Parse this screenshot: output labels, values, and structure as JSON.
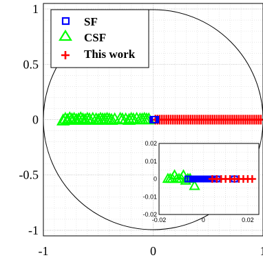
{
  "chart_data": {
    "type": "scatter",
    "title": "",
    "xlabel": "",
    "ylabel": "",
    "xlim": [
      -1,
      1
    ],
    "ylim": [
      -1.05,
      1.05
    ],
    "grid": true,
    "unit_circle": true,
    "legend_position": "top-left",
    "x_ticks": [
      -1,
      0,
      1
    ],
    "x_tick_labels": [
      "-1",
      "0",
      "1"
    ],
    "y_ticks": [
      -1,
      -0.5,
      0,
      0.5,
      1
    ],
    "y_tick_labels": [
      "-1",
      "-0.5",
      "0",
      "0.5",
      "1"
    ],
    "series": [
      {
        "name": "SF",
        "marker": "square",
        "color": "#0000ff",
        "x": [
          0.0,
          0.01,
          0.02
        ],
        "y": [
          0,
          0,
          0
        ]
      },
      {
        "name": "CSF",
        "marker": "triangle",
        "color": "#00ff00",
        "x": [
          -0.82,
          -0.8,
          -0.78,
          -0.76,
          -0.74,
          -0.72,
          -0.7,
          -0.68,
          -0.66,
          -0.64,
          -0.62,
          -0.6,
          -0.58,
          -0.55,
          -0.52,
          -0.5,
          -0.48,
          -0.46,
          -0.44,
          -0.42,
          -0.4,
          -0.38,
          -0.35,
          -0.3,
          -0.28,
          -0.25,
          -0.22,
          -0.2,
          -0.18,
          -0.15,
          -0.12,
          -0.1,
          -0.08,
          -0.06,
          -0.04
        ],
        "y": [
          -0.01,
          0.005,
          -0.005,
          0.01,
          0,
          0.005,
          -0.005,
          0,
          0.01,
          0,
          -0.005,
          0.005,
          0,
          0.005,
          0,
          -0.005,
          0.005,
          0,
          0,
          0.005,
          0,
          -0.005,
          0,
          0.005,
          0,
          0,
          -0.005,
          0.005,
          0,
          0.005,
          0,
          0,
          0.005,
          0,
          0
        ]
      },
      {
        "name": "This work",
        "marker": "plus",
        "color": "#ff0000",
        "x": [
          0.02,
          0.04,
          0.06,
          0.08,
          0.1,
          0.12,
          0.14,
          0.16,
          0.18,
          0.2,
          0.22,
          0.24,
          0.26,
          0.28,
          0.3,
          0.32,
          0.34,
          0.36,
          0.38,
          0.4,
          0.42,
          0.44,
          0.46,
          0.48,
          0.5,
          0.52,
          0.54,
          0.56,
          0.58,
          0.6,
          0.62,
          0.64,
          0.66,
          0.68,
          0.7,
          0.72,
          0.74,
          0.76,
          0.78,
          0.8,
          0.82,
          0.84,
          0.86,
          0.88,
          0.9,
          0.92,
          0.94,
          0.96,
          0.98
        ],
        "y": [
          0,
          0,
          0,
          0,
          0,
          0,
          0,
          0,
          0,
          0,
          0,
          0,
          0,
          0,
          0,
          0,
          0,
          0,
          0,
          0,
          0,
          0,
          0,
          0,
          0,
          0,
          0,
          0,
          0,
          0,
          0,
          0,
          0,
          0,
          0,
          0,
          0,
          0,
          0,
          0,
          0,
          0,
          0,
          0,
          0,
          0,
          0,
          0,
          0
        ]
      }
    ],
    "inset": {
      "xlim": [
        -0.02,
        0.025
      ],
      "ylim": [
        -0.02,
        0.02
      ],
      "x_ticks": [
        -0.02,
        0,
        0.02
      ],
      "x_tick_labels": [
        "-0.02",
        "0",
        "0.02"
      ],
      "y_ticks": [
        -0.02,
        -0.01,
        0,
        0.01,
        0.02
      ],
      "y_tick_labels": [
        "-0.02",
        "-0.01",
        "0",
        "0.01",
        "0.02"
      ],
      "series": [
        {
          "name": "SF",
          "marker": "square",
          "color": "#0000ff",
          "x": [
            -0.007,
            -0.006,
            -0.005,
            -0.004,
            -0.003,
            -0.002,
            -0.001,
            0.0,
            0.001,
            0.002,
            0.003,
            0.004,
            0.005,
            0.006,
            0.014
          ],
          "y": [
            0,
            0,
            0,
            0,
            0,
            0,
            0,
            0,
            0,
            0,
            0,
            0,
            0,
            0,
            0
          ]
        },
        {
          "name": "CSF",
          "marker": "triangle",
          "color": "#00ff00",
          "x": [
            -0.016,
            -0.015,
            -0.014,
            -0.013,
            -0.012,
            -0.011,
            -0.01,
            -0.009,
            -0.008,
            -0.007,
            -0.006,
            -0.004
          ],
          "y": [
            0,
            0,
            0,
            0.002,
            0,
            0,
            0,
            0.002,
            -0.001,
            0,
            0,
            -0.004
          ]
        },
        {
          "name": "This work",
          "marker": "plus",
          "color": "#ff0000",
          "x": [
            0.004,
            0.006,
            0.008,
            0.01,
            0.012,
            0.014,
            0.016,
            0.018,
            0.02,
            0.022
          ],
          "y": [
            0,
            0,
            0,
            0,
            0,
            0,
            0,
            0,
            0,
            0
          ]
        }
      ]
    }
  }
}
